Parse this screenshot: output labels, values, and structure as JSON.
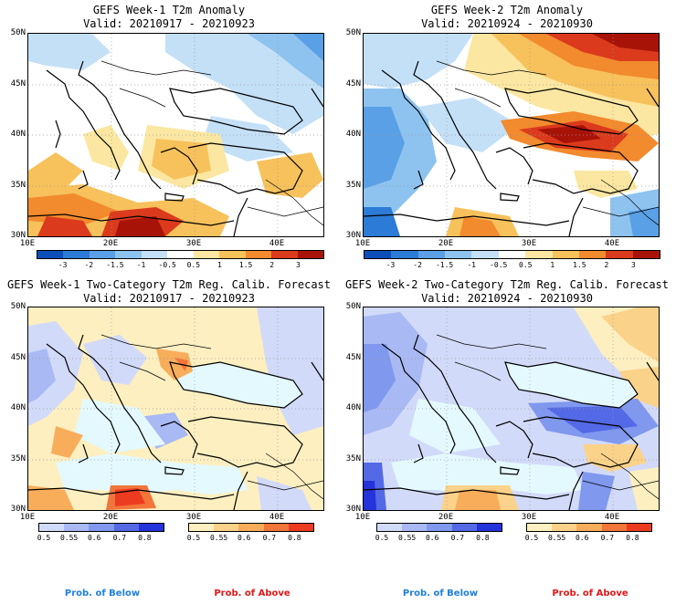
{
  "panels": [
    {
      "title": "GEFS Week-1 T2m Anomaly",
      "valid": "Valid: 20210917 - 20210923"
    },
    {
      "title": "GEFS Week-2 T2m Anomaly",
      "valid": "Valid: 20210924 - 20210930"
    },
    {
      "title": "GEFS Week-1 Two-Category T2m Reg. Calib. Forecast",
      "valid": "Valid: 20210917 - 20210923"
    },
    {
      "title": "GEFS Week-2 Two-Category T2m Reg. Calib. Forecast",
      "valid": "Valid: 20210924 - 20210930"
    }
  ],
  "lat_labels": [
    "50N",
    "45N",
    "40N",
    "35N",
    "30N"
  ],
  "lon_labels": [
    "10E",
    "20E",
    "30E",
    "40E"
  ],
  "anomaly_scale": {
    "labels": [
      "-3",
      "-2",
      "-1.5",
      "-1",
      "-0.5",
      "0.5",
      "1",
      "1.5",
      "2",
      "3"
    ],
    "colors": [
      "#0d4fb8",
      "#2c7bd6",
      "#5aa0e6",
      "#8ec3f0",
      "#c4e0f7",
      "#ffffff",
      "#fbe7a1",
      "#f7c15c",
      "#f28a2e",
      "#db3a1c",
      "#a81308"
    ]
  },
  "prob_scale": {
    "labels": [
      "0.5",
      "0.55",
      "0.6",
      "0.7",
      "0.8"
    ],
    "below_colors": [
      "#d2daf9",
      "#a9b9f4",
      "#8098ee",
      "#5369e6",
      "#2533db"
    ],
    "above_colors": [
      "#fdefc0",
      "#fbd289",
      "#f8ad5b",
      "#f2753a",
      "#ec3b20"
    ]
  },
  "legend": {
    "below": "Prob. of Below",
    "above": "Prob. of Above",
    "below_color": "#1f7fe0",
    "above_color": "#e01818"
  },
  "colors": {
    "ocean_prob": "#e4f9fd",
    "coast": "#000000"
  }
}
